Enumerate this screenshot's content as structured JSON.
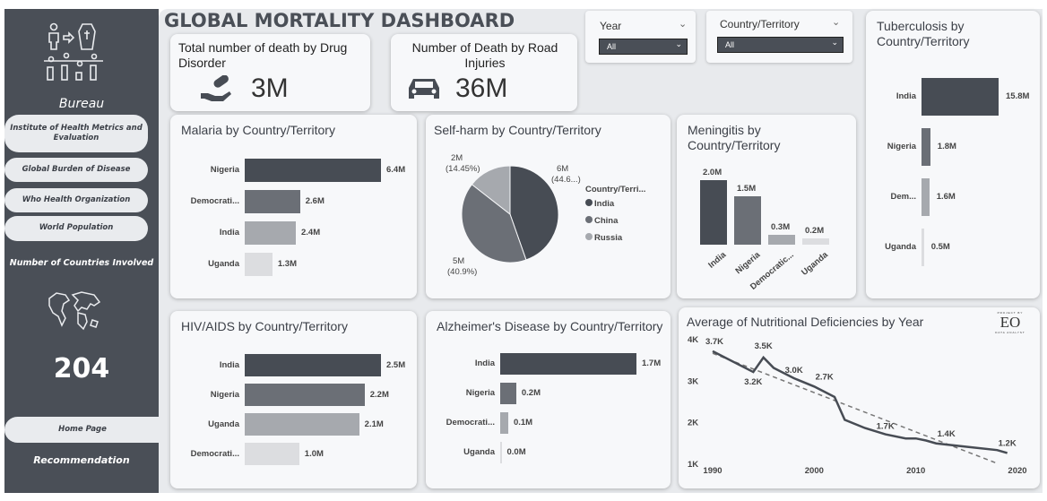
{
  "sidebar": {
    "bureau_label": "Bureau",
    "bureau_links": [
      "Institute of Health Metrics and Evaluation",
      "Global Burden of Disease",
      "Who Health Organization",
      "World Population"
    ],
    "countries_label": "Number of Countries Involved",
    "countries_count": "204",
    "home_label": "Home Page",
    "recommendation_label": "Recommendation"
  },
  "header": {
    "title": "GLOBAL MORTALITY DASHBOARD"
  },
  "kpis": {
    "drug": {
      "label": "Total number of death by Drug Disorder",
      "value": "3M"
    },
    "road": {
      "label": "Number of Death by Road Injuries",
      "value": "36M"
    }
  },
  "slicers": {
    "year": {
      "label": "Year",
      "value": "All"
    },
    "country": {
      "label": "Country/Territory",
      "value": "All"
    }
  },
  "colors": {
    "c1": "#474c54",
    "c2": "#6b6f76",
    "c3": "#a6a9ae",
    "c4": "#dcdde0"
  },
  "chart_data": [
    {
      "id": "malaria",
      "type": "bar",
      "orientation": "horizontal",
      "title": "Malaria by Country/Territory",
      "categories": [
        "Nigeria",
        "Democrati...",
        "India",
        "Uganda"
      ],
      "values": [
        6.4,
        2.6,
        2.4,
        1.3
      ],
      "labels": [
        "6.4M",
        "2.6M",
        "2.4M",
        "1.3M"
      ]
    },
    {
      "id": "selfharm",
      "type": "pie",
      "title": "Self-harm by Country/Territory",
      "legend_title": "Country/Terri...",
      "categories": [
        "India",
        "China",
        "Russia"
      ],
      "values": [
        44.6,
        40.9,
        14.45
      ],
      "labels": [
        [
          "6M",
          "(44.6...)"
        ],
        [
          "5M",
          "(40.9%)"
        ],
        [
          "2M",
          "(14.45%)"
        ]
      ]
    },
    {
      "id": "meningitis",
      "type": "bar",
      "orientation": "vertical",
      "title": "Meningitis by Country/Territory",
      "categories": [
        "India",
        "Nigeria",
        "Democratic...",
        "Uganda"
      ],
      "values": [
        2.0,
        1.5,
        0.3,
        0.2
      ],
      "labels": [
        "2.0M",
        "1.5M",
        "0.3M",
        "0.2M"
      ]
    },
    {
      "id": "tb",
      "type": "bar",
      "orientation": "horizontal",
      "title": "Tuberculosis by Country/Territory",
      "categories": [
        "India",
        "Nigeria",
        "Dem...",
        "Uganda"
      ],
      "values": [
        15.8,
        1.8,
        1.6,
        0.5
      ],
      "labels": [
        "15.8M",
        "1.8M",
        "1.6M",
        "0.5M"
      ]
    },
    {
      "id": "hiv",
      "type": "bar",
      "orientation": "horizontal",
      "title": "HIV/AIDS by Country/Territory",
      "categories": [
        "India",
        "Nigeria",
        "Uganda",
        "Democrati..."
      ],
      "values": [
        2.5,
        2.2,
        2.1,
        1.0
      ],
      "labels": [
        "2.5M",
        "2.2M",
        "2.1M",
        "1.0M"
      ]
    },
    {
      "id": "alz",
      "type": "bar",
      "orientation": "horizontal",
      "title": "Alzheimer's Disease by Country/Territory",
      "categories": [
        "India",
        "Nigeria",
        "Democrati...",
        "Uganda"
      ],
      "values": [
        1.7,
        0.2,
        0.1,
        0.0
      ],
      "labels": [
        "1.7M",
        "0.2M",
        "0.1M",
        "0.0M"
      ]
    },
    {
      "id": "nutri",
      "type": "line",
      "title": "Average of Nutritional Deficiencies by Year",
      "x": [
        1990,
        1994,
        1995,
        1996,
        1998,
        2000,
        2002,
        2003,
        2005,
        2007,
        2009,
        2010,
        2011,
        2012,
        2015,
        2018,
        2019
      ],
      "y": [
        3.7,
        3.2,
        3.55,
        3.3,
        3.05,
        2.85,
        2.6,
        2.05,
        1.85,
        1.7,
        1.6,
        1.6,
        1.55,
        1.48,
        1.4,
        1.32,
        1.25
      ],
      "trend": [
        [
          1990,
          3.65
        ],
        [
          2018,
          1.0
        ]
      ],
      "data_labels": [
        [
          1990,
          "3.7K"
        ],
        [
          1994,
          "3.2K"
        ],
        [
          1995,
          "3.5K"
        ],
        [
          1998,
          "3.0K"
        ],
        [
          2001,
          "2.7K"
        ],
        [
          2007,
          "1.7K"
        ],
        [
          2013,
          "1.4K"
        ],
        [
          2019,
          "1.2K"
        ]
      ],
      "yticks": [
        "1K",
        "2K",
        "3K",
        "4K"
      ],
      "xticks": [
        "1990",
        "2000",
        "2010",
        "2020"
      ],
      "ylim": [
        1,
        4
      ],
      "xlim": [
        1990,
        2020
      ]
    }
  ],
  "logo": "PROJECT BY EO ELLA DATA ANALYST"
}
